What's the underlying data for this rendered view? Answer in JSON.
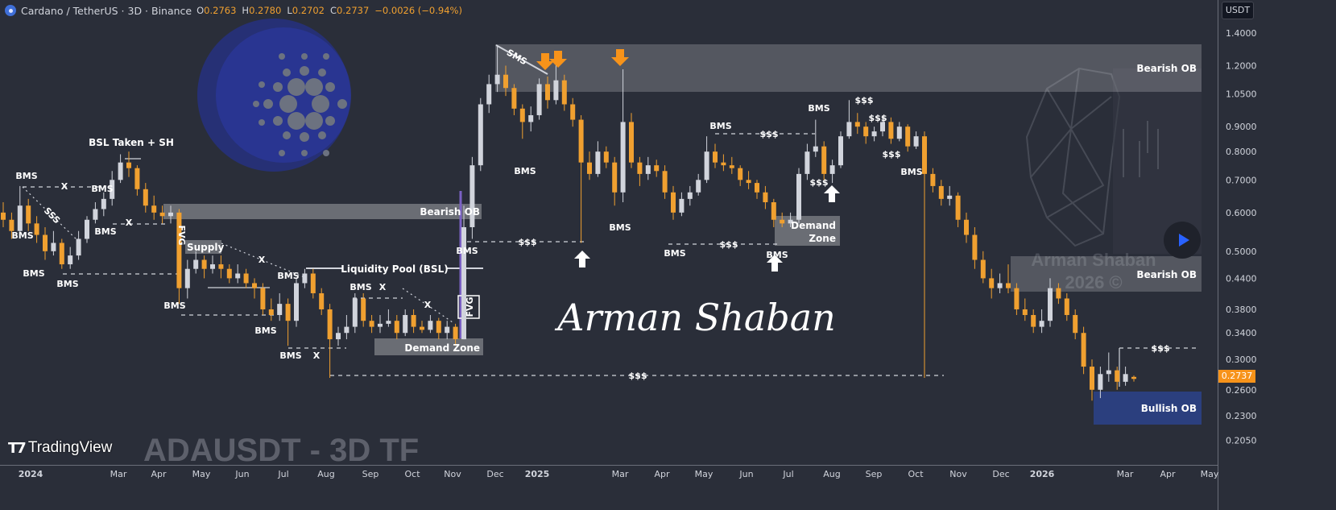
{
  "header": {
    "symbol": "Cardano / TetherUS · 3D · Binance",
    "o_label": "O",
    "o": "0.2763",
    "h_label": "H",
    "h": "0.2780",
    "l_label": "L",
    "l": "0.2702",
    "c_label": "C",
    "c": "0.2737",
    "change": "−0.0026 (−0.94%)"
  },
  "price_axis": {
    "currency": "USDT",
    "ticks": [
      "1.4000",
      "1.2000",
      "1.0500",
      "0.9000",
      "0.8000",
      "0.7000",
      "0.6000",
      "0.5000",
      "0.4400",
      "0.3800",
      "0.3400",
      "0.3000",
      "0.2600",
      "0.2300",
      "0.2050"
    ],
    "last_price": "0.2737"
  },
  "time_axis": {
    "ticks": [
      "2024",
      "Mar",
      "Apr",
      "May",
      "Jun",
      "Jul",
      "Aug",
      "Sep",
      "Oct",
      "Nov",
      "Dec",
      "2025",
      "Mar",
      "Apr",
      "May",
      "Jun",
      "Jul",
      "Aug",
      "Sep",
      "Oct",
      "Nov",
      "Dec",
      "2026",
      "Mar",
      "Apr",
      "May"
    ]
  },
  "annotations": {
    "bearish_ob": "Bearish OB",
    "bullish_ob": "Bullish OB",
    "demand_zone": "Demand Zone",
    "demand": "Demand",
    "zone": "Zone",
    "supply": "Supply",
    "fvg": "FVG",
    "liquidity_pool": "Liquidity Pool (BSL)",
    "bsl_taken": "BSL Taken + SH",
    "bms": "BMS",
    "liquidity": "$$$",
    "x_mark": "X",
    "sms": "SMS",
    "sss": "SSS"
  },
  "watermarks": {
    "signature": "Arman Shaban",
    "chart_caption": "ADAUSDT - 3D TF",
    "author": "Arman Shaban",
    "year": "2026 ©"
  },
  "branding": {
    "tradingview": "TradingView"
  },
  "colors": {
    "background": "#2a2e39",
    "up_candle": "#d1d4dc",
    "down_candle": "#f0a030",
    "last_price_tag": "#f7931a",
    "bullish_ob": "#2b3f7e",
    "fvg_line": "#7b61c4",
    "play_icon": "#2962ff"
  },
  "chart_data": {
    "type": "candlestick",
    "interval": "3D",
    "scale": "log",
    "ylim": [
      0.19,
      1.5
    ],
    "y_ticks": [
      1.4,
      1.2,
      1.05,
      0.9,
      0.8,
      0.7,
      0.6,
      0.5,
      0.44,
      0.38,
      0.34,
      0.3,
      0.26,
      0.23,
      0.205
    ],
    "x_range": [
      "2024 (Jan)",
      "2026 (May)"
    ],
    "grid": false,
    "candles_ohlc": [
      [
        0.6,
        0.63,
        0.56,
        0.58
      ],
      [
        0.58,
        0.6,
        0.53,
        0.55
      ],
      [
        0.55,
        0.68,
        0.54,
        0.62
      ],
      [
        0.62,
        0.64,
        0.55,
        0.57
      ],
      [
        0.57,
        0.59,
        0.52,
        0.54
      ],
      [
        0.54,
        0.56,
        0.48,
        0.5
      ],
      [
        0.5,
        0.55,
        0.49,
        0.52
      ],
      [
        0.52,
        0.53,
        0.46,
        0.47
      ],
      [
        0.47,
        0.51,
        0.46,
        0.49
      ],
      [
        0.49,
        0.55,
        0.48,
        0.53
      ],
      [
        0.53,
        0.59,
        0.52,
        0.58
      ],
      [
        0.58,
        0.63,
        0.57,
        0.61
      ],
      [
        0.61,
        0.66,
        0.59,
        0.64
      ],
      [
        0.64,
        0.73,
        0.62,
        0.7
      ],
      [
        0.7,
        0.79,
        0.69,
        0.76
      ],
      [
        0.76,
        0.8,
        0.71,
        0.74
      ],
      [
        0.74,
        0.75,
        0.65,
        0.67
      ],
      [
        0.67,
        0.69,
        0.6,
        0.62
      ],
      [
        0.62,
        0.65,
        0.58,
        0.6
      ],
      [
        0.6,
        0.62,
        0.57,
        0.59
      ],
      [
        0.59,
        0.62,
        0.57,
        0.6
      ],
      [
        0.6,
        0.61,
        0.39,
        0.42
      ],
      [
        0.42,
        0.48,
        0.4,
        0.46
      ],
      [
        0.46,
        0.5,
        0.45,
        0.48
      ],
      [
        0.48,
        0.49,
        0.44,
        0.46
      ],
      [
        0.46,
        0.49,
        0.45,
        0.47
      ],
      [
        0.47,
        0.49,
        0.44,
        0.46
      ],
      [
        0.46,
        0.47,
        0.43,
        0.44
      ],
      [
        0.44,
        0.47,
        0.43,
        0.45
      ],
      [
        0.45,
        0.46,
        0.42,
        0.43
      ],
      [
        0.43,
        0.44,
        0.4,
        0.42
      ],
      [
        0.42,
        0.43,
        0.37,
        0.38
      ],
      [
        0.38,
        0.4,
        0.36,
        0.37
      ],
      [
        0.37,
        0.41,
        0.36,
        0.39
      ],
      [
        0.39,
        0.4,
        0.32,
        0.36
      ],
      [
        0.36,
        0.44,
        0.35,
        0.43
      ],
      [
        0.43,
        0.46,
        0.42,
        0.45
      ],
      [
        0.45,
        0.46,
        0.4,
        0.41
      ],
      [
        0.41,
        0.42,
        0.37,
        0.38
      ],
      [
        0.38,
        0.39,
        0.275,
        0.33
      ],
      [
        0.33,
        0.35,
        0.32,
        0.34
      ],
      [
        0.34,
        0.37,
        0.33,
        0.35
      ],
      [
        0.35,
        0.41,
        0.34,
        0.4
      ],
      [
        0.4,
        0.41,
        0.35,
        0.36
      ],
      [
        0.36,
        0.37,
        0.34,
        0.35
      ],
      [
        0.35,
        0.37,
        0.34,
        0.355
      ],
      [
        0.355,
        0.38,
        0.35,
        0.36
      ],
      [
        0.36,
        0.37,
        0.33,
        0.34
      ],
      [
        0.34,
        0.38,
        0.335,
        0.37
      ],
      [
        0.37,
        0.38,
        0.34,
        0.35
      ],
      [
        0.35,
        0.36,
        0.34,
        0.345
      ],
      [
        0.345,
        0.37,
        0.34,
        0.36
      ],
      [
        0.36,
        0.365,
        0.33,
        0.34
      ],
      [
        0.34,
        0.36,
        0.33,
        0.35
      ],
      [
        0.35,
        0.355,
        0.32,
        0.33
      ],
      [
        0.33,
        0.62,
        0.33,
        0.56
      ],
      [
        0.56,
        0.78,
        0.53,
        0.75
      ],
      [
        0.75,
        1.03,
        0.73,
        1.0
      ],
      [
        1.0,
        1.15,
        0.96,
        1.1
      ],
      [
        1.1,
        1.32,
        1.06,
        1.15
      ],
      [
        1.15,
        1.2,
        1.04,
        1.08
      ],
      [
        1.08,
        1.1,
        0.95,
        0.98
      ],
      [
        0.98,
        1.0,
        0.85,
        0.92
      ],
      [
        0.92,
        0.99,
        0.88,
        0.95
      ],
      [
        0.95,
        1.13,
        0.93,
        1.1
      ],
      [
        1.1,
        1.14,
        0.98,
        1.02
      ],
      [
        1.02,
        1.22,
        1.0,
        1.12
      ],
      [
        1.12,
        1.15,
        0.97,
        1.0
      ],
      [
        1.0,
        1.03,
        0.9,
        0.93
      ],
      [
        0.93,
        0.95,
        0.52,
        0.76
      ],
      [
        0.76,
        0.8,
        0.7,
        0.72
      ],
      [
        0.72,
        0.84,
        0.71,
        0.8
      ],
      [
        0.8,
        0.82,
        0.74,
        0.76
      ],
      [
        0.76,
        0.78,
        0.62,
        0.66
      ],
      [
        0.66,
        1.18,
        0.63,
        0.92
      ],
      [
        0.92,
        0.96,
        0.74,
        0.76
      ],
      [
        0.76,
        0.78,
        0.68,
        0.72
      ],
      [
        0.72,
        0.78,
        0.7,
        0.75
      ],
      [
        0.75,
        0.77,
        0.71,
        0.73
      ],
      [
        0.73,
        0.75,
        0.64,
        0.66
      ],
      [
        0.66,
        0.68,
        0.58,
        0.6
      ],
      [
        0.6,
        0.66,
        0.59,
        0.64
      ],
      [
        0.64,
        0.68,
        0.62,
        0.66
      ],
      [
        0.66,
        0.72,
        0.65,
        0.7
      ],
      [
        0.7,
        0.86,
        0.69,
        0.8
      ],
      [
        0.8,
        0.83,
        0.74,
        0.76
      ],
      [
        0.76,
        0.79,
        0.73,
        0.75
      ],
      [
        0.75,
        0.78,
        0.72,
        0.74
      ],
      [
        0.74,
        0.75,
        0.68,
        0.7
      ],
      [
        0.7,
        0.73,
        0.67,
        0.69
      ],
      [
        0.69,
        0.7,
        0.64,
        0.66
      ],
      [
        0.66,
        0.68,
        0.61,
        0.63
      ],
      [
        0.63,
        0.64,
        0.56,
        0.58
      ],
      [
        0.58,
        0.6,
        0.56,
        0.57
      ],
      [
        0.57,
        0.6,
        0.56,
        0.58
      ],
      [
        0.58,
        0.74,
        0.57,
        0.72
      ],
      [
        0.72,
        0.83,
        0.7,
        0.8
      ],
      [
        0.8,
        0.93,
        0.78,
        0.82
      ],
      [
        0.82,
        0.84,
        0.7,
        0.72
      ],
      [
        0.72,
        0.77,
        0.69,
        0.75
      ],
      [
        0.75,
        0.88,
        0.74,
        0.86
      ],
      [
        0.86,
        1.02,
        0.85,
        0.92
      ],
      [
        0.92,
        0.96,
        0.87,
        0.9
      ],
      [
        0.9,
        0.92,
        0.83,
        0.86
      ],
      [
        0.86,
        0.9,
        0.84,
        0.88
      ],
      [
        0.88,
        0.95,
        0.86,
        0.92
      ],
      [
        0.92,
        0.94,
        0.83,
        0.85
      ],
      [
        0.85,
        0.92,
        0.84,
        0.9
      ],
      [
        0.9,
        0.91,
        0.8,
        0.82
      ],
      [
        0.82,
        0.88,
        0.81,
        0.86
      ],
      [
        0.86,
        0.88,
        0.275,
        0.72
      ],
      [
        0.72,
        0.74,
        0.66,
        0.68
      ],
      [
        0.68,
        0.7,
        0.62,
        0.64
      ],
      [
        0.64,
        0.68,
        0.62,
        0.65
      ],
      [
        0.65,
        0.66,
        0.56,
        0.58
      ],
      [
        0.58,
        0.6,
        0.52,
        0.54
      ],
      [
        0.54,
        0.56,
        0.46,
        0.48
      ],
      [
        0.48,
        0.5,
        0.43,
        0.44
      ],
      [
        0.44,
        0.46,
        0.4,
        0.42
      ],
      [
        0.42,
        0.45,
        0.41,
        0.43
      ],
      [
        0.43,
        0.47,
        0.41,
        0.42
      ],
      [
        0.42,
        0.43,
        0.37,
        0.38
      ],
      [
        0.38,
        0.4,
        0.36,
        0.37
      ],
      [
        0.37,
        0.38,
        0.34,
        0.35
      ],
      [
        0.35,
        0.38,
        0.34,
        0.36
      ],
      [
        0.36,
        0.44,
        0.35,
        0.42
      ],
      [
        0.42,
        0.43,
        0.39,
        0.4
      ],
      [
        0.4,
        0.41,
        0.36,
        0.37
      ],
      [
        0.37,
        0.38,
        0.33,
        0.34
      ],
      [
        0.34,
        0.35,
        0.28,
        0.29
      ],
      [
        0.29,
        0.3,
        0.247,
        0.26
      ],
      [
        0.26,
        0.29,
        0.25,
        0.28
      ],
      [
        0.28,
        0.31,
        0.27,
        0.285
      ],
      [
        0.285,
        0.29,
        0.26,
        0.27
      ],
      [
        0.27,
        0.29,
        0.265,
        0.28
      ],
      [
        0.2763,
        0.278,
        0.2702,
        0.2737
      ]
    ],
    "last_price": 0.2737
  }
}
